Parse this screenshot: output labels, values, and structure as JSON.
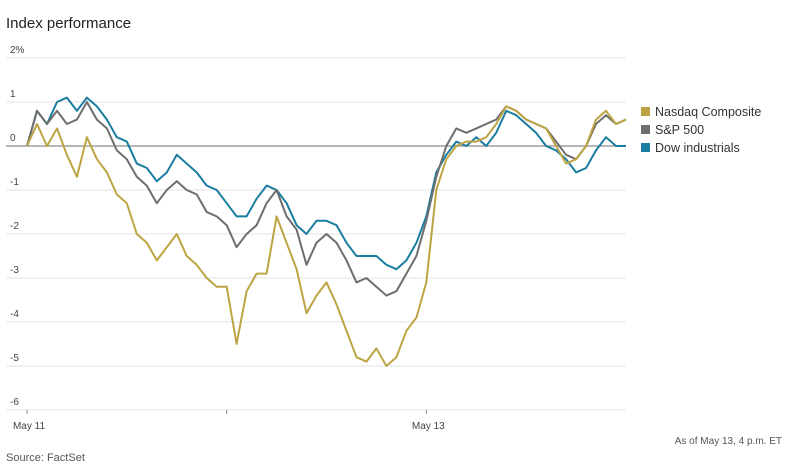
{
  "chart_data": {
    "type": "line",
    "title": "Index performance",
    "source": "Source: FactSet",
    "note": "As of May 13, 4 p.m. ET",
    "x": [
      0,
      1,
      2,
      3,
      4,
      5,
      6,
      7,
      8,
      9,
      10,
      11,
      12,
      13,
      14,
      15,
      16,
      17,
      18,
      19,
      20,
      21,
      22,
      23,
      24,
      25,
      26,
      27,
      28,
      29,
      30,
      31,
      32,
      33,
      34,
      35,
      36,
      37,
      38,
      39,
      40,
      41,
      42,
      43,
      44,
      45,
      46,
      47,
      48,
      49,
      50,
      51,
      52,
      53,
      54,
      55,
      56,
      57,
      58,
      59,
      60
    ],
    "xlim": [
      0,
      60
    ],
    "xticks": [
      {
        "value": 0,
        "label": "May 11"
      },
      {
        "value": 20,
        "label": null
      },
      {
        "value": 40,
        "label": "May 13"
      }
    ],
    "ylim": [
      -6,
      2
    ],
    "yticks": [
      {
        "value": 2,
        "label": "2%"
      },
      1,
      0,
      -1,
      -2,
      -3,
      -4,
      -5,
      -6
    ],
    "grid": true,
    "legend": "right",
    "series": [
      {
        "name": "Nasdaq Composite",
        "color": "#bda443",
        "values": [
          0,
          0.5,
          0.0,
          0.4,
          -0.2,
          -0.7,
          0.2,
          -0.3,
          -0.6,
          -1.1,
          -1.3,
          -2.0,
          -2.2,
          -2.6,
          -2.3,
          -2.0,
          -2.5,
          -2.7,
          -3.0,
          -3.2,
          -3.2,
          -4.5,
          -3.3,
          -2.9,
          -2.9,
          -1.6,
          -2.2,
          -2.8,
          -3.8,
          -3.4,
          -3.1,
          -3.6,
          -4.2,
          -4.8,
          -4.9,
          -4.6,
          -5.0,
          -4.8,
          -4.2,
          -3.9,
          -3.1,
          -1.0,
          -0.3,
          0.0,
          0.1,
          0.1,
          0.2,
          0.5,
          0.9,
          0.8,
          0.6,
          0.5,
          0.4,
          0.0,
          -0.4,
          -0.3,
          0.0,
          0.6,
          0.8,
          0.5,
          0.6
        ]
      },
      {
        "name": "S&P 500",
        "color": "#6e6e6e",
        "values": [
          0,
          0.8,
          0.5,
          0.8,
          0.5,
          0.6,
          1.0,
          0.6,
          0.4,
          -0.1,
          -0.3,
          -0.7,
          -0.9,
          -1.3,
          -1.0,
          -0.8,
          -1.0,
          -1.1,
          -1.5,
          -1.6,
          -1.8,
          -2.3,
          -2.0,
          -1.8,
          -1.3,
          -1.0,
          -1.6,
          -1.9,
          -2.7,
          -2.2,
          -2.0,
          -2.2,
          -2.6,
          -3.1,
          -3.0,
          -3.2,
          -3.4,
          -3.3,
          -2.9,
          -2.5,
          -1.7,
          -0.7,
          0.0,
          0.4,
          0.3,
          0.4,
          0.5,
          0.6,
          0.9,
          0.8,
          0.6,
          0.5,
          0.4,
          0.1,
          -0.2,
          -0.3,
          0.0,
          0.5,
          0.7,
          0.5,
          0.6
        ]
      },
      {
        "name": "Dow industrials",
        "color": "#1b7da0",
        "values": [
          0,
          0.8,
          0.5,
          1.0,
          1.1,
          0.8,
          1.1,
          0.9,
          0.6,
          0.2,
          0.1,
          -0.4,
          -0.5,
          -0.8,
          -0.6,
          -0.2,
          -0.4,
          -0.6,
          -0.9,
          -1.0,
          -1.3,
          -1.6,
          -1.6,
          -1.2,
          -0.9,
          -1.0,
          -1.3,
          -1.8,
          -2.0,
          -1.7,
          -1.7,
          -1.8,
          -2.2,
          -2.5,
          -2.5,
          -2.5,
          -2.7,
          -2.8,
          -2.6,
          -2.2,
          -1.6,
          -0.6,
          -0.2,
          0.1,
          0.0,
          0.2,
          0.0,
          0.3,
          0.8,
          0.7,
          0.5,
          0.3,
          0.0,
          -0.1,
          -0.3,
          -0.6,
          -0.5,
          -0.1,
          0.2,
          0.0,
          0.0
        ]
      }
    ]
  }
}
